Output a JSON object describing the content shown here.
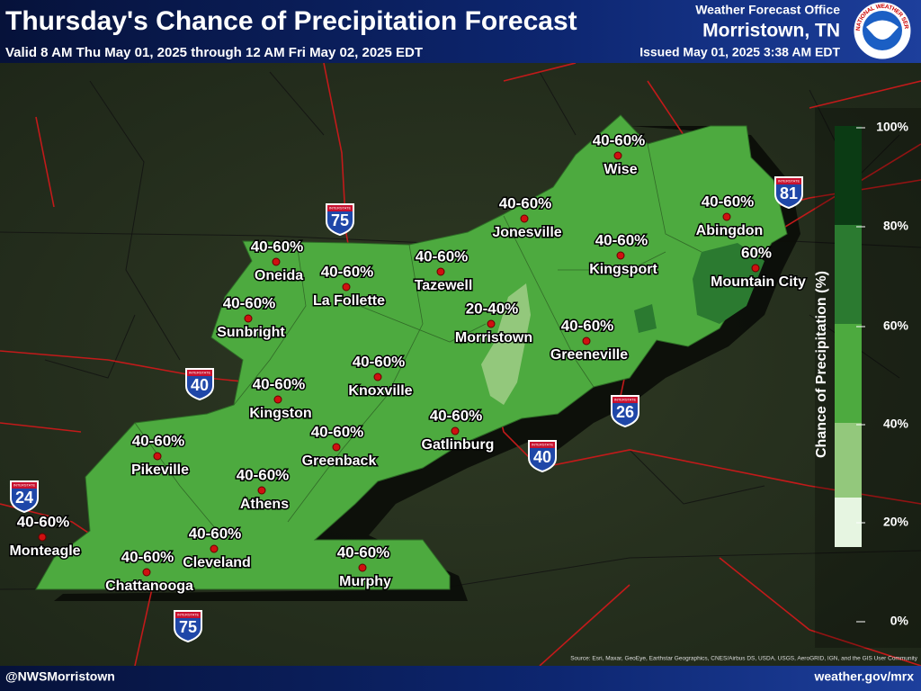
{
  "header": {
    "title": "Thursday's Chance of Precipitation Forecast",
    "valid": "Valid 8 AM Thu May 01, 2025 through 12 AM Fri May 02, 2025 EDT",
    "office": "Weather Forecast Office",
    "office_location": "Morristown, TN",
    "issued": "Issued May 01, 2025 3:38 AM EDT",
    "logo_text": "NATIONAL WEATHER SERVICE"
  },
  "cities": [
    {
      "name": "Wise",
      "chance": "40-60%"
    },
    {
      "name": "Jonesville",
      "chance": "40-60%"
    },
    {
      "name": "Abingdon",
      "chance": "40-60%"
    },
    {
      "name": "Kingsport",
      "chance": "40-60%"
    },
    {
      "name": "Mountain City",
      "chance": "60%"
    },
    {
      "name": "Oneida",
      "chance": "40-60%"
    },
    {
      "name": "La Follette",
      "chance": "40-60%"
    },
    {
      "name": "Tazewell",
      "chance": "40-60%"
    },
    {
      "name": "Sunbright",
      "chance": "40-60%"
    },
    {
      "name": "Morristown",
      "chance": "20-40%"
    },
    {
      "name": "Greeneville",
      "chance": "40-60%"
    },
    {
      "name": "Knoxville",
      "chance": "40-60%"
    },
    {
      "name": "Kingston",
      "chance": "40-60%"
    },
    {
      "name": "Gatlinburg",
      "chance": "40-60%"
    },
    {
      "name": "Greenback",
      "chance": "40-60%"
    },
    {
      "name": "Pikeville",
      "chance": "40-60%"
    },
    {
      "name": "Athens",
      "chance": "40-60%"
    },
    {
      "name": "Monteagle",
      "chance": "40-60%"
    },
    {
      "name": "Cleveland",
      "chance": "40-60%"
    },
    {
      "name": "Chattanooga",
      "chance": "40-60%"
    },
    {
      "name": "Murphy",
      "chance": "40-60%"
    }
  ],
  "interstates": [
    {
      "label": "INTERSTATE",
      "number": "75"
    },
    {
      "label": "INTERSTATE",
      "number": "40"
    },
    {
      "label": "INTERSTATE",
      "number": "81"
    },
    {
      "label": "INTERSTATE",
      "number": "26"
    },
    {
      "label": "INTERSTATE",
      "number": "40"
    },
    {
      "label": "INTERSTATE",
      "number": "24"
    },
    {
      "label": "INTERSTATE",
      "number": "75"
    }
  ],
  "legend": {
    "title": "Chance of Precipitation (%)",
    "ticks": [
      "100%",
      "80%",
      "60%",
      "40%",
      "20%",
      "0%"
    ],
    "colors": [
      "#0b3b14",
      "#2b7a30",
      "#4daa3f",
      "#93c87c",
      "#e6f5e1"
    ]
  },
  "footer": {
    "left": "@NWSMorristown",
    "right": "weather.gov/mrx",
    "source": "Source: Esri, Maxar, GeoEye, Earthstar Geographics, CNES/Airbus DS, USDA, USGS, AeroGRID, IGN, and the GIS User Community"
  }
}
